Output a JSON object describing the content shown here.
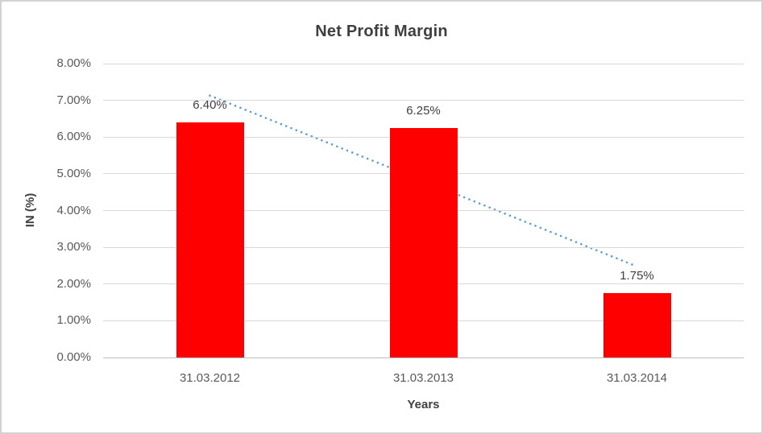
{
  "chart_data": {
    "type": "bar",
    "title": "Net Profit Margin",
    "xlabel": "Years",
    "ylabel": "IN (%)",
    "categories": [
      "31.03.2012",
      "31.03.2013",
      "31.03.2014"
    ],
    "values": [
      6.4,
      6.25,
      1.75
    ],
    "data_labels": [
      "6.40%",
      "6.25%",
      "1.75%"
    ],
    "yticks": [
      "0.00%",
      "1.00%",
      "2.00%",
      "3.00%",
      "4.00%",
      "5.00%",
      "6.00%",
      "7.00%",
      "8.00%"
    ],
    "ylim": [
      0,
      8
    ],
    "grid": true,
    "legend": "none",
    "bar_color": "#ff0000",
    "gridline_color": "#d9d9d9",
    "axis_line_color": "#bfbfbf",
    "trendline": {
      "type": "linear",
      "style": "dotted",
      "color": "#5b9bd5",
      "start_value": 7.13,
      "end_value": 2.48,
      "start_category_index": 0,
      "end_category_index": 2
    }
  }
}
